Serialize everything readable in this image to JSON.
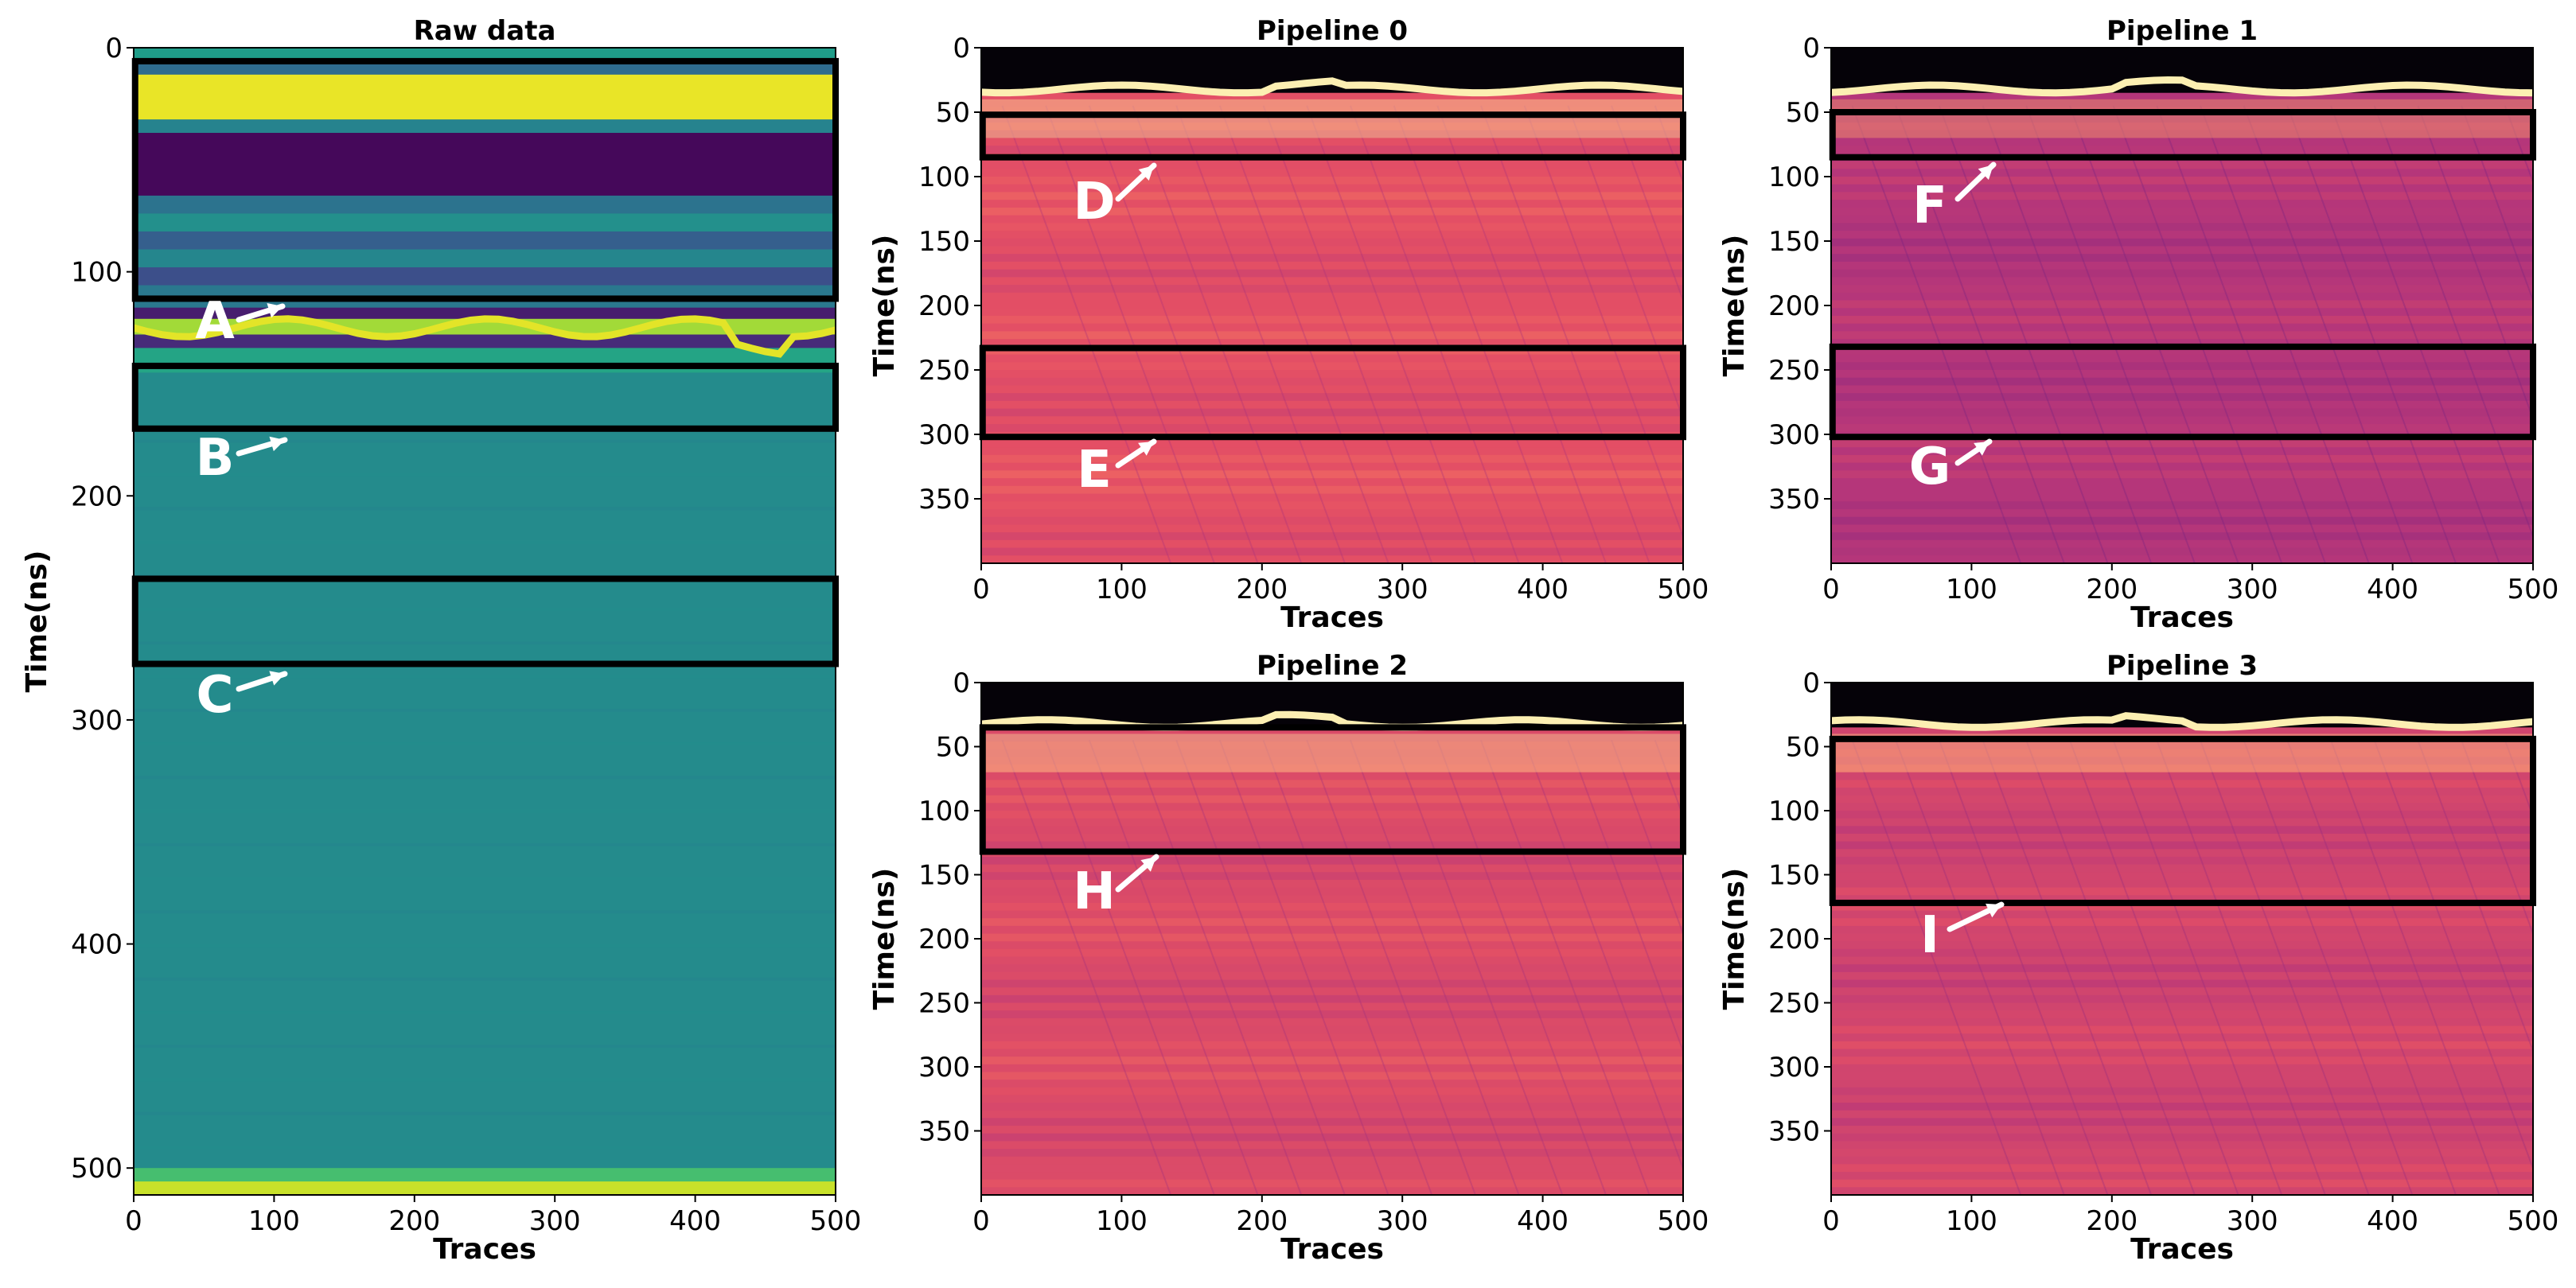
{
  "chart_data": [
    {
      "type": "heatmap",
      "title": "Raw data",
      "colormap": "viridis",
      "xlabel": "Traces",
      "ylabel": "Time(ns)",
      "xlim": [
        0,
        500
      ],
      "ylim": [
        512,
        0
      ],
      "xticks": [
        0,
        100,
        200,
        300,
        400,
        500
      ],
      "yticks": [
        0,
        100,
        200,
        300,
        400,
        500
      ],
      "bands": [
        {
          "from": 0,
          "to": 6,
          "value": 0.55
        },
        {
          "from": 6,
          "to": 12,
          "value": 0.35
        },
        {
          "from": 12,
          "to": 32,
          "value": 0.97
        },
        {
          "from": 32,
          "to": 38,
          "value": 0.45
        },
        {
          "from": 38,
          "to": 66,
          "value": 0.02
        },
        {
          "from": 66,
          "to": 74,
          "value": 0.38
        },
        {
          "from": 74,
          "to": 82,
          "value": 0.5
        },
        {
          "from": 82,
          "to": 90,
          "value": 0.3
        },
        {
          "from": 90,
          "to": 98,
          "value": 0.46
        },
        {
          "from": 98,
          "to": 106,
          "value": 0.24
        },
        {
          "from": 106,
          "to": 116,
          "value": 0.4
        },
        {
          "from": 116,
          "to": 121,
          "value": 0.08
        },
        {
          "from": 121,
          "to": 128,
          "value": 0.86
        },
        {
          "from": 128,
          "to": 134,
          "value": 0.12
        },
        {
          "from": 134,
          "to": 145,
          "value": 0.58
        },
        {
          "from": 145,
          "to": 500,
          "value": 0.48
        },
        {
          "from": 500,
          "to": 506,
          "value": 0.7
        },
        {
          "from": 506,
          "to": 512,
          "value": 0.92
        }
      ],
      "annotations": [
        {
          "label": "A",
          "box": {
            "x0": 1,
            "x1": 500,
            "t0": 6,
            "t1": 112
          }
        },
        {
          "label": "B",
          "box": {
            "x0": 1,
            "x1": 500,
            "t0": 142,
            "t1": 170
          }
        },
        {
          "label": "C",
          "box": {
            "x0": 1,
            "x1": 500,
            "t0": 237,
            "t1": 275
          }
        }
      ]
    },
    {
      "type": "heatmap",
      "title": "Pipeline 0",
      "colormap": "magma",
      "xlabel": "Traces",
      "ylabel": "Time(ns)",
      "xlim": [
        0,
        500
      ],
      "ylim": [
        400,
        0
      ],
      "xticks": [
        0,
        100,
        200,
        300,
        400,
        500
      ],
      "yticks": [
        0,
        50,
        100,
        150,
        200,
        250,
        300,
        350
      ],
      "base_value": 0.62,
      "annotations": [
        {
          "label": "D",
          "box": {
            "x0": 1,
            "x1": 500,
            "t0": 52,
            "t1": 85
          }
        },
        {
          "label": "E",
          "box": {
            "x0": 1,
            "x1": 500,
            "t0": 233,
            "t1": 302
          }
        }
      ]
    },
    {
      "type": "heatmap",
      "title": "Pipeline 1",
      "colormap": "magma",
      "xlabel": "Traces",
      "ylabel": "Time(ns)",
      "xlim": [
        0,
        500
      ],
      "ylim": [
        400,
        0
      ],
      "xticks": [
        0,
        100,
        200,
        300,
        400,
        500
      ],
      "yticks": [
        0,
        50,
        100,
        150,
        200,
        250,
        300,
        350
      ],
      "base_value": 0.5,
      "annotations": [
        {
          "label": "F",
          "box": {
            "x0": 1,
            "x1": 500,
            "t0": 50,
            "t1": 85
          }
        },
        {
          "label": "G",
          "box": {
            "x0": 1,
            "x1": 500,
            "t0": 232,
            "t1": 302
          }
        }
      ]
    },
    {
      "type": "heatmap",
      "title": "Pipeline 2",
      "colormap": "magma",
      "xlabel": "Traces",
      "ylabel": "Time(ns)",
      "xlim": [
        0,
        500
      ],
      "ylim": [
        400,
        0
      ],
      "xticks": [
        0,
        100,
        200,
        300,
        400,
        500
      ],
      "yticks": [
        0,
        50,
        100,
        150,
        200,
        250,
        300,
        350
      ],
      "base_value": 0.6,
      "annotations": [
        {
          "label": "H",
          "box": {
            "x0": 1,
            "x1": 500,
            "t0": 35,
            "t1": 132
          }
        }
      ]
    },
    {
      "type": "heatmap",
      "title": "Pipeline 3",
      "colormap": "magma",
      "xlabel": "Traces",
      "ylabel": "Time(ns)",
      "xlim": [
        0,
        500
      ],
      "ylim": [
        400,
        0
      ],
      "xticks": [
        0,
        100,
        200,
        300,
        400,
        500
      ],
      "yticks": [
        0,
        50,
        100,
        150,
        200,
        250,
        300,
        350
      ],
      "base_value": 0.57,
      "annotations": [
        {
          "label": "I",
          "box": {
            "x0": 1,
            "x1": 500,
            "t0": 44,
            "t1": 172
          }
        }
      ]
    }
  ]
}
